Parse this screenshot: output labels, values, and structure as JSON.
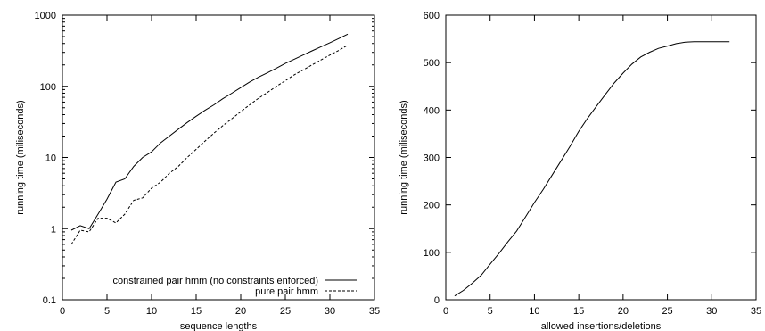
{
  "chart_data": [
    {
      "type": "line",
      "xlabel": "sequence lengths",
      "ylabel": "running time (miliseconds)",
      "xlim": [
        0,
        35
      ],
      "ylim": [
        0.1,
        1000
      ],
      "yscale": "log",
      "xticks": [
        "0",
        "5",
        "10",
        "15",
        "20",
        "25",
        "30",
        "35"
      ],
      "yticks": [
        "0.1",
        "1",
        "10",
        "100",
        "1000"
      ],
      "xtick_values": [
        0,
        5,
        10,
        15,
        20,
        25,
        30,
        35
      ],
      "ytick_values": [
        0.1,
        1,
        10,
        100,
        1000
      ],
      "grid": false,
      "legend_position": "bottom-right",
      "series": [
        {
          "name": "constrained pair hmm (no constraints enforced)",
          "style": "solid",
          "x": [
            1,
            2,
            3,
            4,
            5,
            6,
            7,
            8,
            9,
            10,
            11,
            12,
            13,
            14,
            15,
            16,
            17,
            18,
            19,
            20,
            21,
            22,
            23,
            24,
            25,
            26,
            27,
            28,
            29,
            30,
            31,
            32
          ],
          "y": [
            0.95,
            1.1,
            1.0,
            1.6,
            2.6,
            4.5,
            5.0,
            7.5,
            10,
            12,
            16,
            20,
            25,
            31,
            38,
            46,
            55,
            67,
            80,
            96,
            115,
            135,
            155,
            180,
            210,
            240,
            275,
            315,
            360,
            410,
            470,
            540
          ]
        },
        {
          "name": "pure pair hmm",
          "style": "dashed",
          "x": [
            1,
            2,
            3,
            4,
            5,
            6,
            7,
            8,
            9,
            10,
            11,
            12,
            13,
            14,
            15,
            16,
            17,
            18,
            19,
            20,
            21,
            22,
            23,
            24,
            25,
            26,
            27,
            28,
            29,
            30,
            31,
            32
          ],
          "y": [
            0.6,
            0.95,
            0.9,
            1.4,
            1.4,
            1.2,
            1.6,
            2.5,
            2.7,
            3.7,
            4.5,
            6.0,
            7.5,
            10,
            13,
            17,
            22,
            28,
            35,
            44,
            55,
            68,
            82,
            100,
            120,
            145,
            170,
            200,
            235,
            275,
            320,
            380
          ]
        }
      ]
    },
    {
      "type": "line",
      "xlabel": "allowed insertions/deletions",
      "ylabel": "running time (miliseconds)",
      "xlim": [
        0,
        35
      ],
      "ylim": [
        0,
        600
      ],
      "yscale": "linear",
      "xticks": [
        "0",
        "5",
        "10",
        "15",
        "20",
        "25",
        "30",
        "35"
      ],
      "yticks": [
        "0",
        "100",
        "200",
        "300",
        "400",
        "500",
        "600"
      ],
      "xtick_values": [
        0,
        5,
        10,
        15,
        20,
        25,
        30,
        35
      ],
      "ytick_values": [
        0,
        100,
        200,
        300,
        400,
        500,
        600
      ],
      "grid": false,
      "series": [
        {
          "style": "solid",
          "x": [
            1,
            2,
            3,
            4,
            5,
            6,
            7,
            8,
            9,
            10,
            11,
            12,
            13,
            14,
            15,
            16,
            17,
            18,
            19,
            20,
            21,
            22,
            23,
            24,
            25,
            26,
            27,
            28,
            29,
            30,
            31,
            32
          ],
          "y": [
            8,
            20,
            35,
            52,
            75,
            98,
            122,
            145,
            175,
            205,
            233,
            263,
            293,
            323,
            355,
            383,
            408,
            433,
            457,
            478,
            497,
            512,
            522,
            530,
            535,
            540,
            543,
            544,
            544,
            544,
            544,
            544
          ]
        }
      ]
    }
  ]
}
